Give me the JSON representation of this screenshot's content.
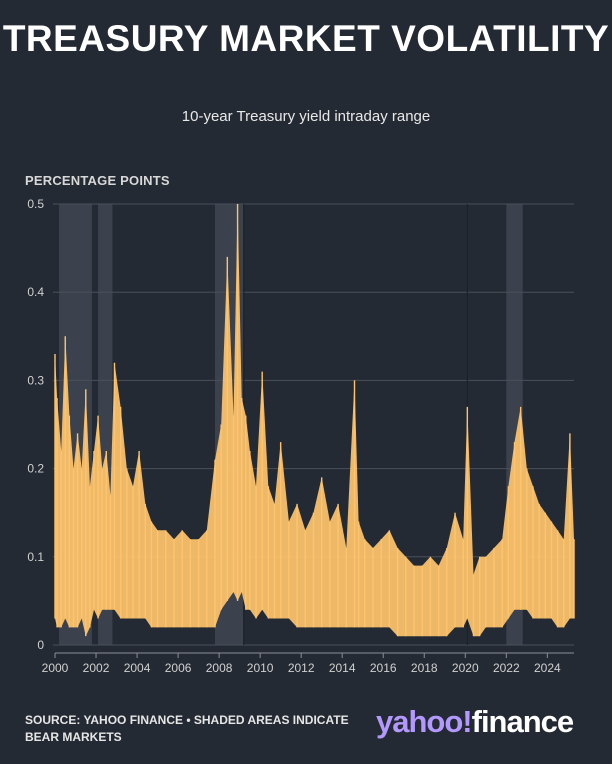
{
  "header": {
    "title": "TREASURY MARKET VOLATILITY",
    "subtitle": "10-year Treasury yield intraday range"
  },
  "footer": {
    "source": "SOURCE: YAHOO FINANCE • SHADED AREAS INDICATE BEAR MARKETS",
    "logo_part1": "yahoo!",
    "logo_part2": "finance"
  },
  "colors": {
    "background": "#242a33",
    "series": "#ffc46b",
    "shade": "#3f4550",
    "grid": "#4a505a",
    "text": "#ffffff"
  },
  "chart_data": {
    "type": "area",
    "title": "TREASURY MARKET VOLATILITY",
    "subtitle": "10-year Treasury yield intraday range",
    "ylabel": "PERCENTAGE POINTS",
    "xlabel": "",
    "ylim": [
      0,
      0.5
    ],
    "xlim": [
      2000,
      2025.3
    ],
    "y_ticks": [
      0,
      0.1,
      0.2,
      0.3,
      0.4,
      0.5
    ],
    "y_tick_labels": [
      "0",
      "0.1",
      "0.2",
      "0.3",
      "0.4",
      "0.5"
    ],
    "x_ticks": [
      2000,
      2002,
      2004,
      2006,
      2008,
      2010,
      2012,
      2014,
      2016,
      2018,
      2020,
      2022,
      2024
    ],
    "x_tick_labels": [
      "2000",
      "2002",
      "2004",
      "2006",
      "2008",
      "2010",
      "2012",
      "2014",
      "2016",
      "2018",
      "2020",
      "2022",
      "2024"
    ],
    "grid": true,
    "shaded_periods": [
      {
        "label": "Bear market",
        "start": 2000.2,
        "end": 2001.8
      },
      {
        "label": "Bear market",
        "start": 2002.1,
        "end": 2002.8
      },
      {
        "label": "Bear market",
        "start": 2007.8,
        "end": 2009.2
      },
      {
        "label": "Bear market",
        "start": 2022.0,
        "end": 2022.8
      }
    ],
    "reference_lines": [
      2009.2,
      2020.1
    ],
    "series": [
      {
        "name": "Intraday range",
        "x": [
          2000.0,
          2000.1,
          2000.3,
          2000.5,
          2000.7,
          2000.9,
          2001.1,
          2001.3,
          2001.5,
          2001.7,
          2001.9,
          2002.1,
          2002.3,
          2002.5,
          2002.7,
          2002.9,
          2003.2,
          2003.5,
          2003.8,
          2004.1,
          2004.4,
          2004.7,
          2005.0,
          2005.4,
          2005.8,
          2006.2,
          2006.6,
          2007.0,
          2007.4,
          2007.8,
          2008.1,
          2008.4,
          2008.7,
          2008.9,
          2009.1,
          2009.3,
          2009.5,
          2009.8,
          2010.1,
          2010.4,
          2010.7,
          2011.0,
          2011.4,
          2011.8,
          2012.2,
          2012.6,
          2013.0,
          2013.4,
          2013.8,
          2014.2,
          2014.6,
          2014.8,
          2015.1,
          2015.5,
          2015.9,
          2016.3,
          2016.7,
          2017.1,
          2017.5,
          2017.9,
          2018.3,
          2018.7,
          2019.1,
          2019.5,
          2019.9,
          2020.1,
          2020.4,
          2020.7,
          2021.0,
          2021.4,
          2021.8,
          2022.1,
          2022.4,
          2022.7,
          2023.0,
          2023.3,
          2023.6,
          2023.9,
          2024.2,
          2024.5,
          2024.8,
          2025.1,
          2025.3
        ],
        "low": [
          0.03,
          0.02,
          0.02,
          0.03,
          0.02,
          0.02,
          0.02,
          0.03,
          0.01,
          0.02,
          0.04,
          0.03,
          0.04,
          0.04,
          0.04,
          0.04,
          0.03,
          0.03,
          0.03,
          0.03,
          0.03,
          0.02,
          0.02,
          0.02,
          0.02,
          0.02,
          0.02,
          0.02,
          0.02,
          0.02,
          0.04,
          0.05,
          0.06,
          0.05,
          0.06,
          0.04,
          0.04,
          0.03,
          0.04,
          0.03,
          0.03,
          0.03,
          0.03,
          0.02,
          0.02,
          0.02,
          0.02,
          0.02,
          0.02,
          0.02,
          0.02,
          0.02,
          0.02,
          0.02,
          0.02,
          0.02,
          0.01,
          0.01,
          0.01,
          0.01,
          0.01,
          0.01,
          0.01,
          0.02,
          0.02,
          0.03,
          0.01,
          0.01,
          0.02,
          0.02,
          0.02,
          0.03,
          0.04,
          0.04,
          0.04,
          0.03,
          0.03,
          0.03,
          0.03,
          0.02,
          0.02,
          0.03,
          0.03
        ],
        "high": [
          0.33,
          0.28,
          0.22,
          0.35,
          0.26,
          0.2,
          0.24,
          0.2,
          0.29,
          0.18,
          0.22,
          0.26,
          0.2,
          0.22,
          0.17,
          0.32,
          0.27,
          0.2,
          0.18,
          0.22,
          0.16,
          0.14,
          0.13,
          0.13,
          0.12,
          0.13,
          0.12,
          0.12,
          0.13,
          0.21,
          0.25,
          0.44,
          0.26,
          0.5,
          0.28,
          0.26,
          0.22,
          0.18,
          0.31,
          0.18,
          0.16,
          0.23,
          0.14,
          0.16,
          0.13,
          0.15,
          0.19,
          0.14,
          0.16,
          0.11,
          0.3,
          0.14,
          0.12,
          0.11,
          0.12,
          0.13,
          0.11,
          0.1,
          0.09,
          0.09,
          0.1,
          0.09,
          0.11,
          0.15,
          0.12,
          0.27,
          0.08,
          0.1,
          0.1,
          0.11,
          0.12,
          0.18,
          0.23,
          0.27,
          0.2,
          0.18,
          0.16,
          0.15,
          0.14,
          0.13,
          0.12,
          0.24,
          0.12
        ]
      }
    ]
  }
}
